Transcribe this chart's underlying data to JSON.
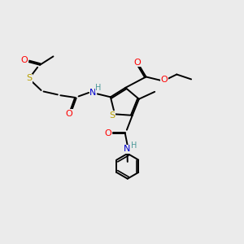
{
  "background_color": "#ebebeb",
  "atom_colors": {
    "S": "#b8a000",
    "O": "#ff0000",
    "N": "#0000cc",
    "H": "#4d9999",
    "C": "#000000"
  },
  "bond_color": "#000000",
  "bond_width": 1.4,
  "fig_w": 3.0,
  "fig_h": 3.0,
  "dpi": 100,
  "xlim": [
    0,
    10
  ],
  "ylim": [
    0,
    10
  ]
}
